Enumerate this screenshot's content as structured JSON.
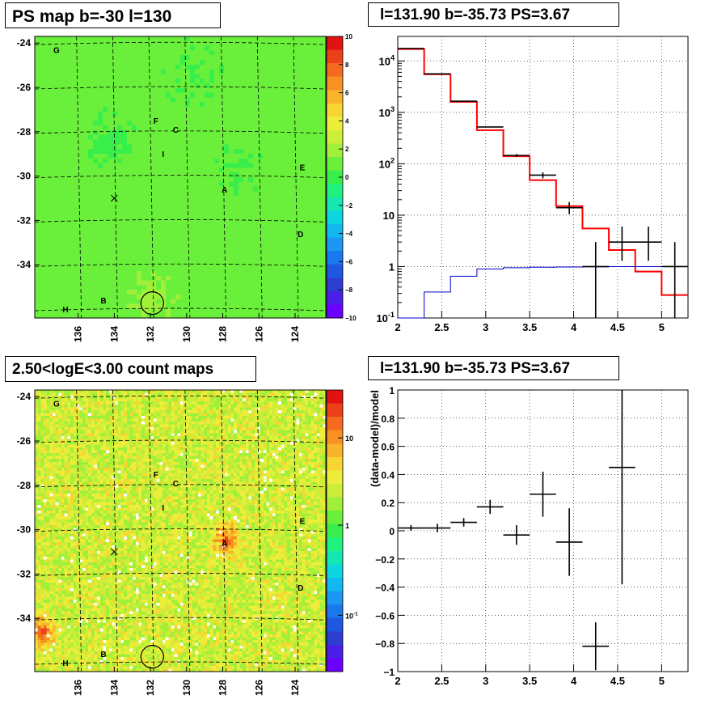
{
  "titles": {
    "top_left": "PS map b=-30 l=130",
    "top_right": "l=131.90 b=-35.73 PS=3.67",
    "bottom_left": "2.50<logE<3.00 count maps",
    "bottom_right": "l=131.90 b=-35.73 PS=3.67"
  },
  "chart_data": [
    {
      "type": "heatmap",
      "panel": "top-left",
      "title": "PS map b=-30 l=130",
      "x_ticks": [
        "136",
        "134",
        "132",
        "130",
        "128",
        "126",
        "124"
      ],
      "y_ticks": [
        "-24",
        "-26",
        "-28",
        "-30",
        "-32",
        "-34"
      ],
      "colorbar": {
        "ticks": [
          "10",
          "8",
          "6",
          "4",
          "2",
          "0",
          "−2",
          "−4",
          "−6",
          "−8",
          "−10"
        ],
        "zlim": [
          -10,
          10
        ]
      },
      "markers": [
        {
          "label": "G",
          "l": 137.2,
          "b": -24.3
        },
        {
          "label": "F",
          "l": 131.7,
          "b": -27.5
        },
        {
          "label": "C",
          "l": 130.6,
          "b": -27.9
        },
        {
          "label": "I",
          "l": 131.3,
          "b": -29.0
        },
        {
          "label": "E",
          "l": 123.6,
          "b": -29.6
        },
        {
          "label": "A",
          "l": 127.9,
          "b": -30.6
        },
        {
          "label": "D",
          "l": 123.7,
          "b": -32.6
        },
        {
          "label": "B",
          "l": 134.6,
          "b": -35.6
        },
        {
          "label": "H",
          "l": 136.7,
          "b": -36.0
        }
      ],
      "cross_marker": {
        "l": 134.0,
        "b": -31.0
      },
      "circle_marker": {
        "l": 131.9,
        "b": -35.73
      }
    },
    {
      "type": "line",
      "panel": "top-right",
      "title": "l=131.90 b=-35.73 PS=3.67",
      "xlim": [
        2,
        5.3
      ],
      "ylim": [
        0.1,
        30000
      ],
      "yscale": "log",
      "x_ticks": [
        "2",
        "2.5",
        "3",
        "3.5",
        "4",
        "4.5",
        "5"
      ],
      "y_ticks": [
        "10^-1",
        "1",
        "10",
        "10^2",
        "10^3",
        "10^4"
      ],
      "grid": true,
      "bin_edges": [
        2.0,
        2.3,
        2.6,
        2.9,
        3.2,
        3.5,
        3.8,
        4.1,
        4.4,
        4.7,
        5.0,
        5.3
      ],
      "series": [
        {
          "color": "#ff0000",
          "step_values": [
            17000,
            5500,
            1600,
            450,
            140,
            48,
            15,
            5.5,
            2.1,
            0.8,
            0.28
          ]
        },
        {
          "color": "#0000cc",
          "step_values": [
            0.05,
            0.32,
            0.65,
            0.9,
            0.95,
            0.97,
            0.98,
            0.99,
            1.0,
            1.0,
            1.0
          ]
        },
        {
          "color": "#000000",
          "points": [
            {
              "x": 2.15,
              "y": 17500,
              "xerr": 0.15
            },
            {
              "x": 2.45,
              "y": 5600,
              "xerr": 0.15
            },
            {
              "x": 2.75,
              "y": 1650,
              "xerr": 0.15
            },
            {
              "x": 3.05,
              "y": 520,
              "xerr": 0.15
            },
            {
              "x": 3.35,
              "y": 145,
              "xerr": 0.15,
              "ylo": 135,
              "yhi": 155
            },
            {
              "x": 3.65,
              "y": 60,
              "xerr": 0.15,
              "ylo": 52,
              "yhi": 68
            },
            {
              "x": 3.95,
              "y": 14,
              "xerr": 0.15,
              "ylo": 10.5,
              "yhi": 18
            },
            {
              "x": 4.25,
              "y": 1.0,
              "xerr": 0.15,
              "ylo": 0.1,
              "yhi": 3.0
            },
            {
              "x": 4.55,
              "y": 3.0,
              "xerr": 0.15,
              "ylo": 1.3,
              "yhi": 6.0
            },
            {
              "x": 4.85,
              "y": 3.0,
              "xerr": 0.15,
              "ylo": 1.3,
              "yhi": 6.0
            },
            {
              "x": 5.15,
              "y": 1.0,
              "xerr": 0.15,
              "ylo": 0.1,
              "yhi": 3.0
            }
          ]
        }
      ]
    },
    {
      "type": "heatmap",
      "panel": "bottom-left",
      "title": "2.50<logE<3.00 count maps",
      "x_ticks": [
        "136",
        "134",
        "132",
        "130",
        "128",
        "126",
        "124"
      ],
      "y_ticks": [
        "-24",
        "-26",
        "-28",
        "-30",
        "-32",
        "-34"
      ],
      "colorbar": {
        "scale": "log",
        "ticks": [
          "10",
          "1",
          "10^-1"
        ]
      },
      "markers": [
        {
          "label": "G",
          "l": 137.2,
          "b": -24.3
        },
        {
          "label": "F",
          "l": 131.7,
          "b": -27.5
        },
        {
          "label": "C",
          "l": 130.6,
          "b": -27.9
        },
        {
          "label": "I",
          "l": 131.3,
          "b": -29.0
        },
        {
          "label": "E",
          "l": 123.6,
          "b": -29.6
        },
        {
          "label": "A",
          "l": 127.9,
          "b": -30.6
        },
        {
          "label": "D",
          "l": 123.7,
          "b": -32.6
        },
        {
          "label": "B",
          "l": 134.6,
          "b": -35.6
        },
        {
          "label": "H",
          "l": 136.7,
          "b": -36.0
        }
      ],
      "cross_marker": {
        "l": 134.0,
        "b": -31.0
      },
      "circle_marker": {
        "l": 131.9,
        "b": -35.73
      },
      "hotspots": [
        {
          "l": 127.8,
          "b": -30.5,
          "strength": 5.0
        },
        {
          "l": 138.0,
          "b": -34.6,
          "strength": 4.0
        }
      ]
    },
    {
      "type": "scatter",
      "panel": "bottom-right",
      "title": "l=131.90 b=-35.73 PS=3.67",
      "ylabel": "(data-model)/model",
      "xlim": [
        2,
        5.3
      ],
      "ylim": [
        -1,
        1
      ],
      "x_ticks": [
        "2",
        "2.5",
        "3",
        "3.5",
        "4",
        "4.5",
        "5"
      ],
      "y_ticks": [
        "1",
        "0.8",
        "0.6",
        "0.4",
        "0.2",
        "0",
        "−0.2",
        "−0.4",
        "−0.6",
        "−0.8",
        "−1"
      ],
      "grid": true,
      "points": [
        {
          "x": 2.15,
          "y": 0.02,
          "xerr": 0.15,
          "yerr": 0.02
        },
        {
          "x": 2.45,
          "y": 0.02,
          "xerr": 0.15,
          "yerr": 0.03
        },
        {
          "x": 2.75,
          "y": 0.06,
          "xerr": 0.15,
          "yerr": 0.03
        },
        {
          "x": 3.05,
          "y": 0.17,
          "xerr": 0.15,
          "yerr": 0.05
        },
        {
          "x": 3.35,
          "y": -0.03,
          "xerr": 0.15,
          "yerr": 0.07
        },
        {
          "x": 3.65,
          "y": 0.26,
          "xerr": 0.15,
          "yerr": 0.16
        },
        {
          "x": 3.95,
          "y": -0.08,
          "xerr": 0.15,
          "yerr": 0.24
        },
        {
          "x": 4.25,
          "y": -0.82,
          "xerr": 0.15,
          "yerr": 0.17
        },
        {
          "x": 4.55,
          "y": 0.45,
          "xerr": 0.15,
          "ylo": -0.38,
          "yhi": 1.0
        }
      ]
    }
  ]
}
